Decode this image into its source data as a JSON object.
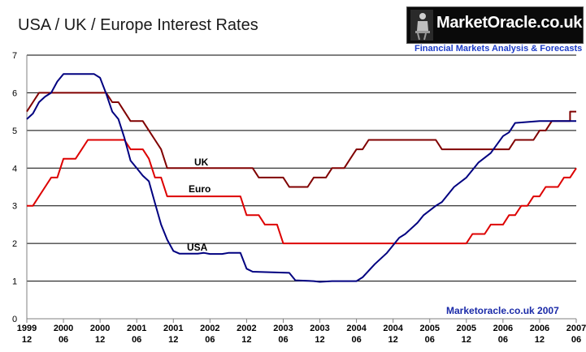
{
  "chart_data": {
    "type": "line",
    "title": "USA / UK / Europe Interest Rates",
    "xlabel": "",
    "ylabel": "",
    "ylim": [
      0,
      7
    ],
    "yticks": [
      0,
      1,
      2,
      3,
      4,
      5,
      6,
      7
    ],
    "xlim": [
      1999.917,
      2007.417
    ],
    "xticks": [
      {
        "pos": 1999.917,
        "year": "1999",
        "month": "12"
      },
      {
        "pos": 2000.417,
        "year": "2000",
        "month": "06"
      },
      {
        "pos": 2000.917,
        "year": "2000",
        "month": "12"
      },
      {
        "pos": 2001.417,
        "year": "2001",
        "month": "06"
      },
      {
        "pos": 2001.917,
        "year": "2001",
        "month": "12"
      },
      {
        "pos": 2002.417,
        "year": "2002",
        "month": "06"
      },
      {
        "pos": 2002.917,
        "year": "2002",
        "month": "12"
      },
      {
        "pos": 2003.417,
        "year": "2003",
        "month": "06"
      },
      {
        "pos": 2003.917,
        "year": "2003",
        "month": "12"
      },
      {
        "pos": 2004.417,
        "year": "2004",
        "month": "06"
      },
      {
        "pos": 2004.917,
        "year": "2004",
        "month": "12"
      },
      {
        "pos": 2005.417,
        "year": "2005",
        "month": "06"
      },
      {
        "pos": 2005.917,
        "year": "2005",
        "month": "12"
      },
      {
        "pos": 2006.417,
        "year": "2006",
        "month": "06"
      },
      {
        "pos": 2006.917,
        "year": "2006",
        "month": "12"
      },
      {
        "pos": 2007.417,
        "year": "2007",
        "month": "06"
      }
    ],
    "grid": "horizontal",
    "series": [
      {
        "name": "UK",
        "color": "#800000",
        "points": [
          [
            1999.917,
            5.5
          ],
          [
            2000.0,
            5.75
          ],
          [
            2000.083,
            6.0
          ],
          [
            2001.0,
            6.0
          ],
          [
            2001.083,
            5.75
          ],
          [
            2001.167,
            5.75
          ],
          [
            2001.25,
            5.5
          ],
          [
            2001.333,
            5.25
          ],
          [
            2001.5,
            5.25
          ],
          [
            2001.583,
            5.0
          ],
          [
            2001.667,
            4.75
          ],
          [
            2001.75,
            4.5
          ],
          [
            2001.833,
            4.0
          ],
          [
            2003.0,
            4.0
          ],
          [
            2003.083,
            3.75
          ],
          [
            2003.417,
            3.75
          ],
          [
            2003.5,
            3.5
          ],
          [
            2003.75,
            3.5
          ],
          [
            2003.833,
            3.75
          ],
          [
            2004.0,
            3.75
          ],
          [
            2004.083,
            4.0
          ],
          [
            2004.25,
            4.0
          ],
          [
            2004.333,
            4.25
          ],
          [
            2004.417,
            4.5
          ],
          [
            2004.5,
            4.5
          ],
          [
            2004.583,
            4.75
          ],
          [
            2005.5,
            4.75
          ],
          [
            2005.583,
            4.5
          ],
          [
            2006.5,
            4.5
          ],
          [
            2006.583,
            4.75
          ],
          [
            2006.833,
            4.75
          ],
          [
            2006.917,
            5.0
          ],
          [
            2007.0,
            5.0
          ],
          [
            2007.083,
            5.25
          ],
          [
            2007.333,
            5.25
          ],
          [
            2007.333,
            5.5
          ],
          [
            2007.417,
            5.5
          ]
        ]
      },
      {
        "name": "Euro",
        "color": "#dd0000",
        "points": [
          [
            1999.917,
            3.0
          ],
          [
            2000.0,
            3.0
          ],
          [
            2000.083,
            3.25
          ],
          [
            2000.167,
            3.5
          ],
          [
            2000.25,
            3.75
          ],
          [
            2000.333,
            3.75
          ],
          [
            2000.417,
            4.25
          ],
          [
            2000.583,
            4.25
          ],
          [
            2000.667,
            4.5
          ],
          [
            2000.75,
            4.75
          ],
          [
            2001.25,
            4.75
          ],
          [
            2001.333,
            4.5
          ],
          [
            2001.5,
            4.5
          ],
          [
            2001.583,
            4.25
          ],
          [
            2001.667,
            3.75
          ],
          [
            2001.75,
            3.75
          ],
          [
            2001.833,
            3.25
          ],
          [
            2002.833,
            3.25
          ],
          [
            2002.917,
            2.75
          ],
          [
            2003.083,
            2.75
          ],
          [
            2003.167,
            2.5
          ],
          [
            2003.333,
            2.5
          ],
          [
            2003.417,
            2.0
          ],
          [
            2005.917,
            2.0
          ],
          [
            2006.0,
            2.25
          ],
          [
            2006.167,
            2.25
          ],
          [
            2006.25,
            2.5
          ],
          [
            2006.417,
            2.5
          ],
          [
            2006.5,
            2.75
          ],
          [
            2006.583,
            2.75
          ],
          [
            2006.667,
            3.0
          ],
          [
            2006.75,
            3.0
          ],
          [
            2006.833,
            3.25
          ],
          [
            2006.917,
            3.25
          ],
          [
            2007.0,
            3.5
          ],
          [
            2007.167,
            3.5
          ],
          [
            2007.25,
            3.75
          ],
          [
            2007.333,
            3.75
          ],
          [
            2007.417,
            4.0
          ]
        ]
      },
      {
        "name": "USA",
        "color": "#000080",
        "points": [
          [
            1999.917,
            5.3
          ],
          [
            2000.0,
            5.45
          ],
          [
            2000.083,
            5.75
          ],
          [
            2000.167,
            5.9
          ],
          [
            2000.25,
            6.0
          ],
          [
            2000.333,
            6.3
          ],
          [
            2000.417,
            6.5
          ],
          [
            2000.75,
            6.5
          ],
          [
            2000.833,
            6.5
          ],
          [
            2000.917,
            6.4
          ],
          [
            2001.0,
            5.98
          ],
          [
            2001.083,
            5.5
          ],
          [
            2001.167,
            5.3
          ],
          [
            2001.25,
            4.8
          ],
          [
            2001.333,
            4.2
          ],
          [
            2001.417,
            4.0
          ],
          [
            2001.5,
            3.8
          ],
          [
            2001.583,
            3.65
          ],
          [
            2001.667,
            3.07
          ],
          [
            2001.75,
            2.5
          ],
          [
            2001.833,
            2.1
          ],
          [
            2001.917,
            1.8
          ],
          [
            2002.0,
            1.73
          ],
          [
            2002.25,
            1.73
          ],
          [
            2002.333,
            1.75
          ],
          [
            2002.417,
            1.72
          ],
          [
            2002.583,
            1.72
          ],
          [
            2002.667,
            1.75
          ],
          [
            2002.833,
            1.75
          ],
          [
            2002.917,
            1.33
          ],
          [
            2003.0,
            1.25
          ],
          [
            2003.5,
            1.22
          ],
          [
            2003.583,
            1.02
          ],
          [
            2003.833,
            1.0
          ],
          [
            2003.917,
            0.98
          ],
          [
            2004.083,
            1.0
          ],
          [
            2004.417,
            1.0
          ],
          [
            2004.5,
            1.1
          ],
          [
            2004.667,
            1.45
          ],
          [
            2004.833,
            1.75
          ],
          [
            2005.0,
            2.15
          ],
          [
            2005.083,
            2.25
          ],
          [
            2005.25,
            2.55
          ],
          [
            2005.333,
            2.75
          ],
          [
            2005.5,
            3.0
          ],
          [
            2005.583,
            3.1
          ],
          [
            2005.75,
            3.5
          ],
          [
            2005.917,
            3.75
          ],
          [
            2006.0,
            3.95
          ],
          [
            2006.083,
            4.15
          ],
          [
            2006.25,
            4.4
          ],
          [
            2006.417,
            4.85
          ],
          [
            2006.5,
            4.95
          ],
          [
            2006.583,
            5.2
          ],
          [
            2006.917,
            5.25
          ],
          [
            2007.417,
            5.25
          ]
        ]
      }
    ],
    "series_labels": [
      {
        "text": "UK",
        "series": "UK"
      },
      {
        "text": "Euro",
        "series": "Euro"
      },
      {
        "text": "USA",
        "series": "USA"
      }
    ]
  },
  "branding": {
    "logo_text": "MarketOracle.co.uk",
    "tagline": "Financial Markets Analysis & Forecasts",
    "footer_credit": "Marketoracle.co.uk 2007"
  }
}
